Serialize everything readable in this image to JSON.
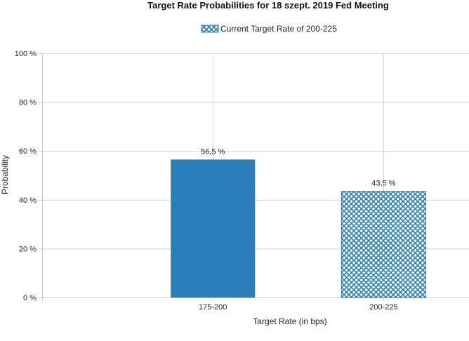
{
  "chart_data": {
    "type": "bar",
    "title": "Target Rate Probabilities for 18 szept. 2019 Fed Meeting",
    "xlabel": "Target Rate (in bps)",
    "ylabel": "Probability",
    "categories": [
      "175-200",
      "200-225"
    ],
    "values": [
      56.5,
      43.5
    ],
    "value_labels": [
      "56,5 %",
      "43,5 %"
    ],
    "ylim": [
      0,
      100
    ],
    "y_ticks": [
      0,
      20,
      40,
      60,
      80,
      100
    ],
    "y_tick_labels": [
      "0 %",
      "20 %",
      "40 %",
      "60 %",
      "80 %",
      "100 %"
    ],
    "grid": true,
    "legend": {
      "position": "top-center",
      "entries": [
        {
          "label": "Current Target Rate of 200-225",
          "style": "crosshatch"
        }
      ]
    },
    "bar_styles": [
      "solid",
      "crosshatch"
    ],
    "colors": {
      "bar": "#2a7fba",
      "grid": "#d4d4d4",
      "axis": "#c8c8c8",
      "text": "#222222"
    }
  }
}
